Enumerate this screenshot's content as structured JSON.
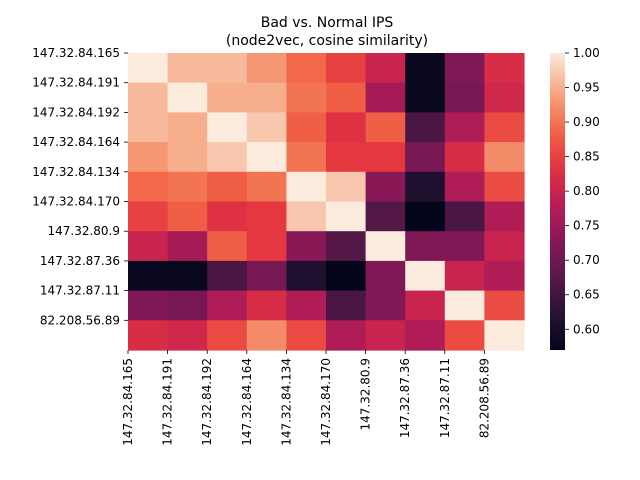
{
  "chart_data": {
    "type": "heatmap",
    "title": "Bad vs. Normal IPS",
    "subtitle": "(node2vec, cosine similarity)",
    "xlabel": "",
    "ylabel": "",
    "row_labels": [
      "147.32.84.165",
      "147.32.84.191",
      "147.32.84.192",
      "147.32.84.164",
      "147.32.84.134",
      "147.32.84.170",
      "147.32.80.9",
      "147.32.87.36",
      "147.32.87.11",
      "82.208.56.89"
    ],
    "col_labels": [
      "147.32.84.165",
      "147.32.84.191",
      "147.32.84.192",
      "147.32.84.164",
      "147.32.84.134",
      "147.32.84.170",
      "147.32.80.9",
      "147.32.87.36",
      "147.32.87.11",
      "82.208.56.89"
    ],
    "values": [
      [
        1.0,
        0.96,
        0.96,
        0.93,
        0.89,
        0.85,
        0.8,
        0.58,
        0.72,
        0.82
      ],
      [
        0.96,
        1.0,
        0.95,
        0.95,
        0.9,
        0.88,
        0.76,
        0.58,
        0.71,
        0.81
      ],
      [
        0.96,
        0.95,
        1.0,
        0.97,
        0.88,
        0.83,
        0.88,
        0.66,
        0.77,
        0.86
      ],
      [
        0.93,
        0.95,
        0.97,
        1.0,
        0.9,
        0.84,
        0.84,
        0.71,
        0.82,
        0.92
      ],
      [
        0.89,
        0.9,
        0.88,
        0.9,
        1.0,
        0.97,
        0.73,
        0.61,
        0.77,
        0.86
      ],
      [
        0.85,
        0.88,
        0.83,
        0.84,
        0.97,
        1.0,
        0.67,
        0.57,
        0.66,
        0.77
      ],
      [
        0.8,
        0.76,
        0.88,
        0.84,
        0.73,
        0.67,
        1.0,
        0.72,
        0.72,
        0.8
      ],
      [
        0.58,
        0.58,
        0.66,
        0.71,
        0.61,
        0.57,
        0.72,
        1.0,
        0.8,
        0.77
      ],
      [
        0.72,
        0.71,
        0.77,
        0.82,
        0.77,
        0.66,
        0.72,
        0.8,
        1.0,
        0.86
      ],
      [
        0.82,
        0.81,
        0.86,
        0.92,
        0.86,
        0.77,
        0.8,
        0.77,
        0.86,
        1.0
      ]
    ],
    "colorbar": {
      "min": 0.57,
      "max": 1.0,
      "ticks": [
        0.6,
        0.65,
        0.7,
        0.75,
        0.8,
        0.85,
        0.9,
        0.95,
        1.0
      ],
      "tick_labels": [
        "0.60",
        "0.65",
        "0.70",
        "0.75",
        "0.80",
        "0.85",
        "0.90",
        "0.95",
        "1.00"
      ],
      "colormap": "rocket"
    },
    "grid": false
  }
}
